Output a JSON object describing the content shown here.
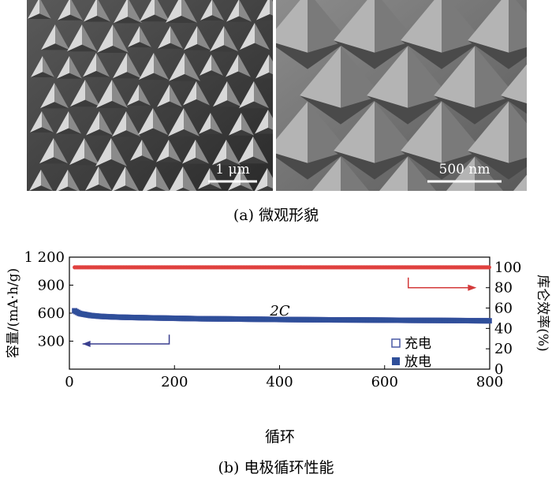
{
  "figure_a": {
    "caption": "(a) 微观形貌",
    "left_scalebar": "1 μm",
    "right_scalebar": "500 nm"
  },
  "figure_b": {
    "caption": "(b) 电极循环性能"
  },
  "chart_data": {
    "type": "scatter",
    "xlabel": "循环",
    "ylabel_left": "容量/(mA·h/g)",
    "ylabel_right": "库仑效率(%)",
    "xlim": [
      0,
      800
    ],
    "ylim_left": [
      0,
      1200
    ],
    "ylim_right": [
      0,
      110
    ],
    "xticks": [
      "0",
      "200",
      "400",
      "600",
      "800"
    ],
    "yticks_left": [
      "300",
      "600",
      "900",
      "1 200"
    ],
    "yticks_right": [
      "0",
      "20",
      "40",
      "60",
      "80",
      "100"
    ],
    "annotation": "2C",
    "legend_position": "bottom-right",
    "colors": {
      "charge": "#4a5aa6",
      "discharge": "#2f4f9a",
      "efficiency": "#e0413f",
      "arrow_left": "#3a3f8f",
      "arrow_right": "#d33a3a"
    },
    "series": [
      {
        "name": "充电",
        "axis": "left",
        "marker": "hollow-square",
        "x": [
          10,
          20,
          40,
          60,
          80,
          100,
          150,
          200,
          250,
          300,
          350,
          400,
          450,
          500,
          550,
          600,
          650,
          700,
          750,
          800
        ],
        "y": [
          625,
          595,
          575,
          565,
          560,
          556,
          550,
          545,
          540,
          538,
          535,
          532,
          530,
          528,
          527,
          525,
          523,
          522,
          520,
          518
        ]
      },
      {
        "name": "放电",
        "axis": "left",
        "marker": "filled-square",
        "x": [
          10,
          20,
          40,
          60,
          80,
          100,
          150,
          200,
          250,
          300,
          350,
          400,
          450,
          500,
          550,
          600,
          650,
          700,
          750,
          800
        ],
        "y": [
          625,
          595,
          575,
          565,
          560,
          556,
          550,
          545,
          540,
          538,
          535,
          532,
          530,
          528,
          527,
          525,
          523,
          522,
          520,
          518
        ]
      },
      {
        "name": "",
        "axis": "right",
        "marker": "filled-circle",
        "x": [
          10,
          100,
          200,
          300,
          400,
          500,
          600,
          700,
          800
        ],
        "y": [
          100,
          100,
          100,
          100,
          100,
          100,
          100,
          100,
          100
        ]
      }
    ]
  }
}
